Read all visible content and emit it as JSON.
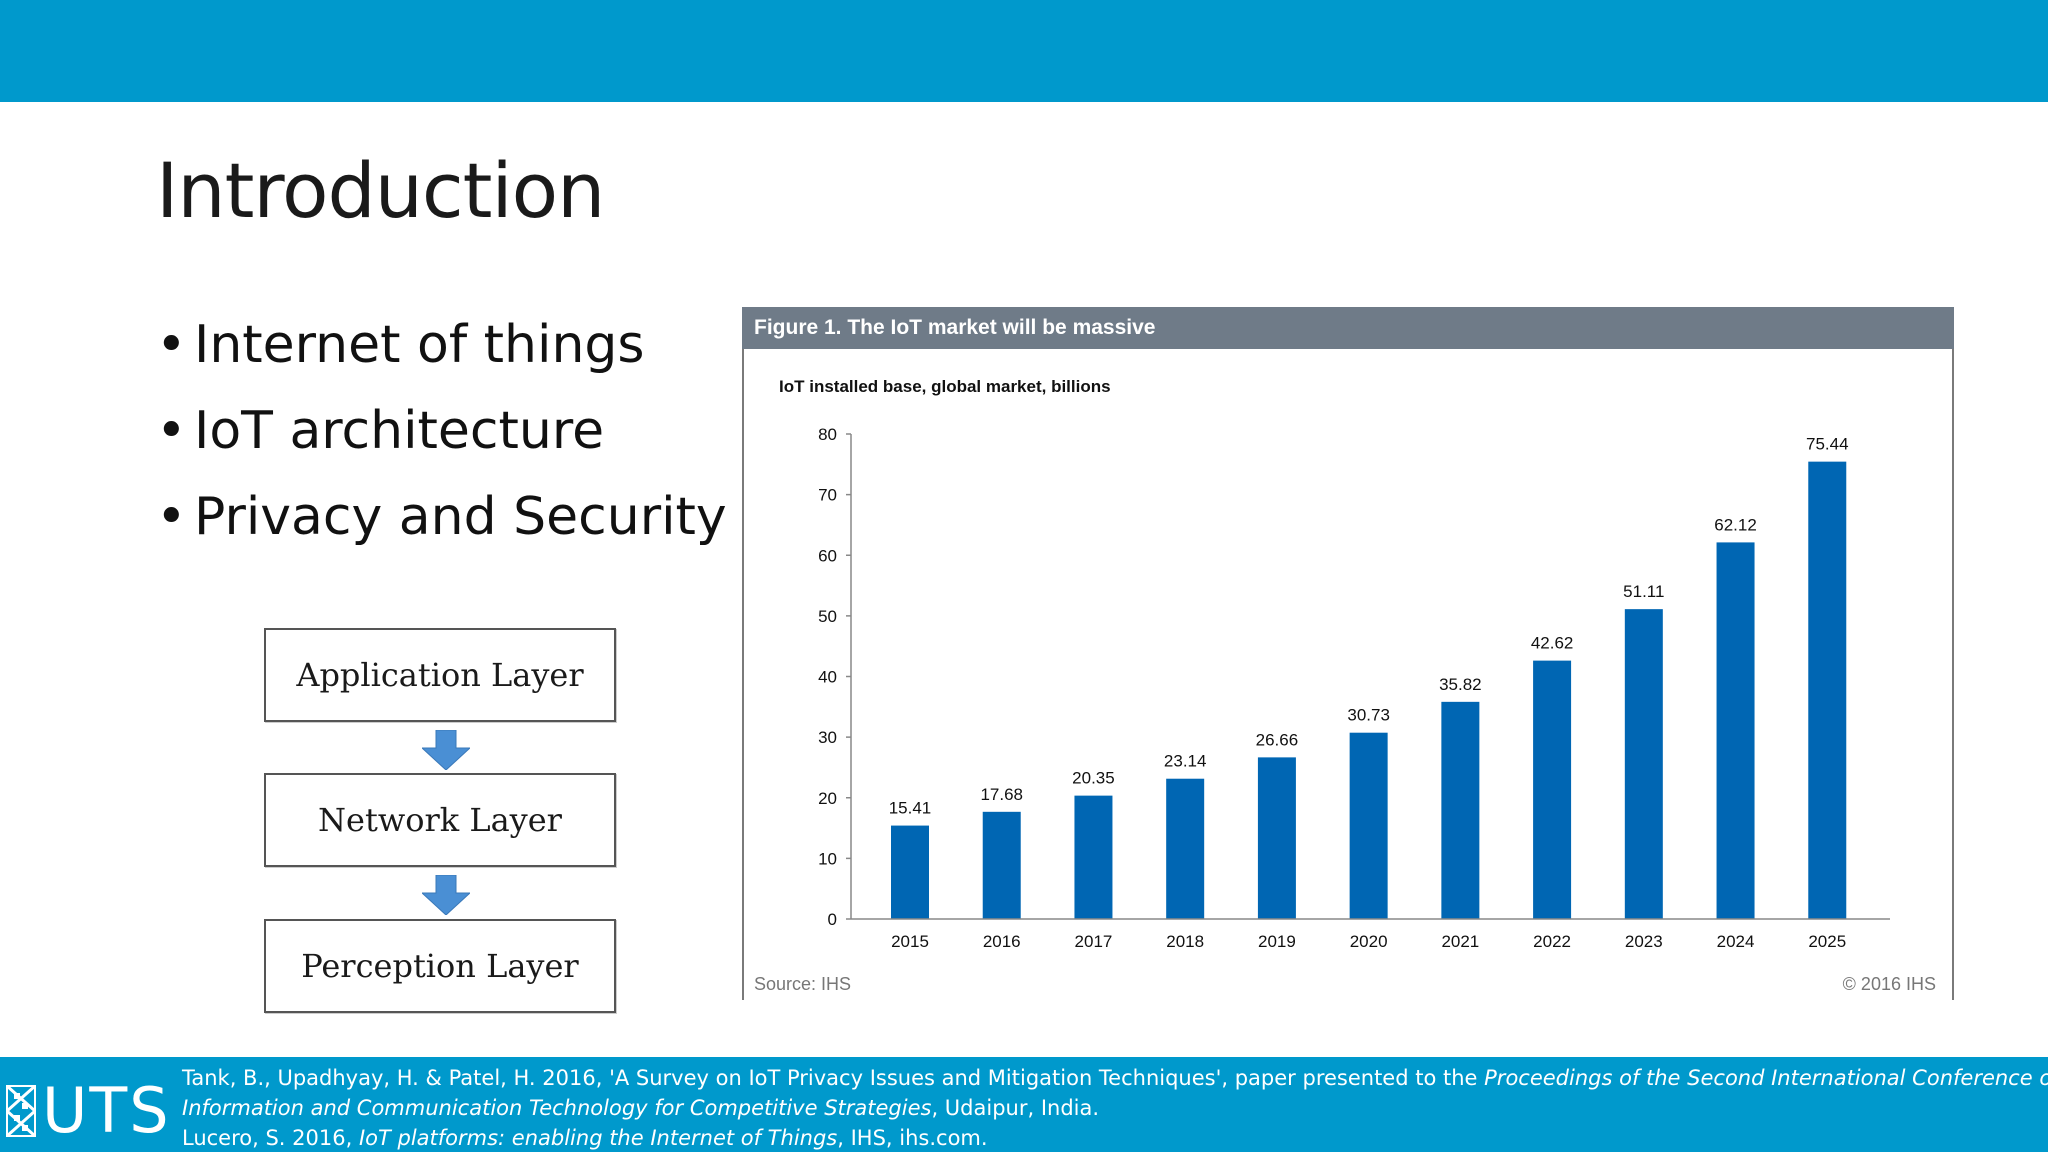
{
  "slide": {
    "title": "Introduction",
    "bullets": [
      "Internet of things",
      "IoT architecture",
      "Privacy and Security"
    ]
  },
  "architecture": {
    "layers": [
      "Application Layer",
      "Network Layer",
      "Perception Layer"
    ],
    "arrow_color": "#4a8fd4"
  },
  "figure": {
    "header": "Figure 1. The IoT market will be massive",
    "source": "Source: IHS",
    "copyright": "© 2016 IHS"
  },
  "chart_data": {
    "type": "bar",
    "title": "IoT installed base, global market, billions",
    "categories": [
      "2015",
      "2016",
      "2017",
      "2018",
      "2019",
      "2020",
      "2021",
      "2022",
      "2023",
      "2024",
      "2025"
    ],
    "values": [
      15.41,
      17.68,
      20.35,
      23.14,
      26.66,
      30.73,
      35.82,
      42.62,
      51.11,
      62.12,
      75.44
    ],
    "value_labels": [
      "15.41",
      "17.68",
      "20.35",
      "23.14",
      "26.66",
      "30.73",
      "35.82",
      "42.62",
      "51.11",
      "62.12",
      "75.44"
    ],
    "ylim": [
      0,
      80
    ],
    "yticks": [
      0,
      10,
      20,
      30,
      40,
      50,
      60,
      70,
      80
    ],
    "xlabel": "",
    "ylabel": "",
    "grid": false,
    "legend": "none",
    "bar_color": "#0066b3"
  },
  "footer": {
    "logo": "UTS",
    "ref1_part1": "Tank, B., Upadhyay, H. & Patel, H. 2016, 'A Survey on IoT Privacy Issues and Mitigation Techniques', paper presented to the ",
    "ref1_italic1": "Proceedings of the Second International Conference on",
    "ref1_italic2": "Information and Communication Technology for Competitive Strategies",
    "ref1_part2": ", Udaipur, India.",
    "ref2_part1": "Lucero, S. 2016, ",
    "ref2_italic": "IoT platforms: enabling the Internet of Things",
    "ref2_part2": ", IHS, ihs.com."
  }
}
